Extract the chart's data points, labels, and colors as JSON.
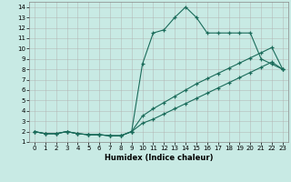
{
  "xlabel": "Humidex (Indice chaleur)",
  "background_color": "#c8eae4",
  "grid_color": "#b0b0b0",
  "line_color": "#1a6b5a",
  "xlim": [
    -0.5,
    23.5
  ],
  "ylim": [
    1,
    14.5
  ],
  "xticks": [
    0,
    1,
    2,
    3,
    4,
    5,
    6,
    7,
    8,
    9,
    10,
    11,
    12,
    13,
    14,
    15,
    16,
    17,
    18,
    19,
    20,
    21,
    22,
    23
  ],
  "yticks": [
    1,
    2,
    3,
    4,
    5,
    6,
    7,
    8,
    9,
    10,
    11,
    12,
    13,
    14
  ],
  "line1_x": [
    0,
    1,
    2,
    3,
    4,
    5,
    6,
    7,
    8,
    9,
    10,
    11,
    12,
    13,
    14,
    15,
    16,
    17,
    18,
    19,
    20,
    21,
    22,
    23
  ],
  "line1_y": [
    2.0,
    1.8,
    1.8,
    2.0,
    1.8,
    1.7,
    1.7,
    1.6,
    1.6,
    2.0,
    8.5,
    11.5,
    11.8,
    13.0,
    14.0,
    13.0,
    11.5,
    11.5,
    11.5,
    11.5,
    11.5,
    9.0,
    8.5,
    8.0
  ],
  "line2_x": [
    0,
    1,
    2,
    3,
    4,
    5,
    6,
    7,
    8,
    9,
    10,
    11,
    12,
    13,
    14,
    15,
    16,
    17,
    18,
    19,
    20,
    21,
    22,
    23
  ],
  "line2_y": [
    2.0,
    1.8,
    1.8,
    2.0,
    1.8,
    1.7,
    1.7,
    1.6,
    1.6,
    2.0,
    3.5,
    4.2,
    4.8,
    5.4,
    6.0,
    6.6,
    7.1,
    7.6,
    8.1,
    8.6,
    9.1,
    9.6,
    10.1,
    8.0
  ],
  "line3_x": [
    0,
    1,
    2,
    3,
    4,
    5,
    6,
    7,
    8,
    9,
    10,
    11,
    12,
    13,
    14,
    15,
    16,
    17,
    18,
    19,
    20,
    21,
    22,
    23
  ],
  "line3_y": [
    2.0,
    1.8,
    1.8,
    2.0,
    1.8,
    1.7,
    1.7,
    1.6,
    1.6,
    2.0,
    2.8,
    3.2,
    3.7,
    4.2,
    4.7,
    5.2,
    5.7,
    6.2,
    6.7,
    7.2,
    7.7,
    8.2,
    8.7,
    8.0
  ]
}
